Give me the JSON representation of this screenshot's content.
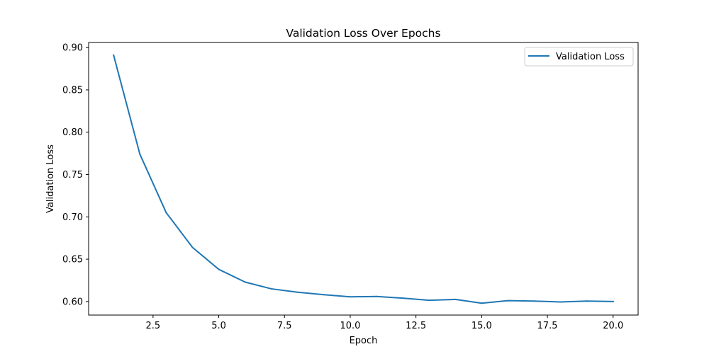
{
  "chart_data": {
    "type": "line",
    "title": "Validation Loss Over Epochs",
    "xlabel": "Epoch",
    "ylabel": "Validation Loss",
    "xlim": [
      0.05,
      20.95
    ],
    "ylim": [
      0.584,
      0.906
    ],
    "xticks": [
      2.5,
      5.0,
      7.5,
      10.0,
      12.5,
      15.0,
      17.5,
      20.0
    ],
    "xtick_labels": [
      "2.5",
      "5.0",
      "7.5",
      "10.0",
      "12.5",
      "15.0",
      "17.5",
      "20.0"
    ],
    "yticks": [
      0.6,
      0.65,
      0.7,
      0.75,
      0.8,
      0.85,
      0.9
    ],
    "ytick_labels": [
      "0.60",
      "0.65",
      "0.70",
      "0.75",
      "0.80",
      "0.85",
      "0.90"
    ],
    "grid": false,
    "legend_position": "top-right",
    "series": [
      {
        "name": "Validation Loss",
        "color": "#1f77b4",
        "x": [
          1,
          2,
          3,
          4,
          5,
          6,
          7,
          8,
          9,
          10,
          11,
          12,
          13,
          14,
          15,
          16,
          17,
          18,
          19,
          20
        ],
        "y": [
          0.891,
          0.774,
          0.705,
          0.664,
          0.638,
          0.623,
          0.615,
          0.611,
          0.608,
          0.6055,
          0.606,
          0.604,
          0.6015,
          0.6025,
          0.598,
          0.601,
          0.6005,
          0.5995,
          0.6005,
          0.6
        ]
      }
    ]
  }
}
